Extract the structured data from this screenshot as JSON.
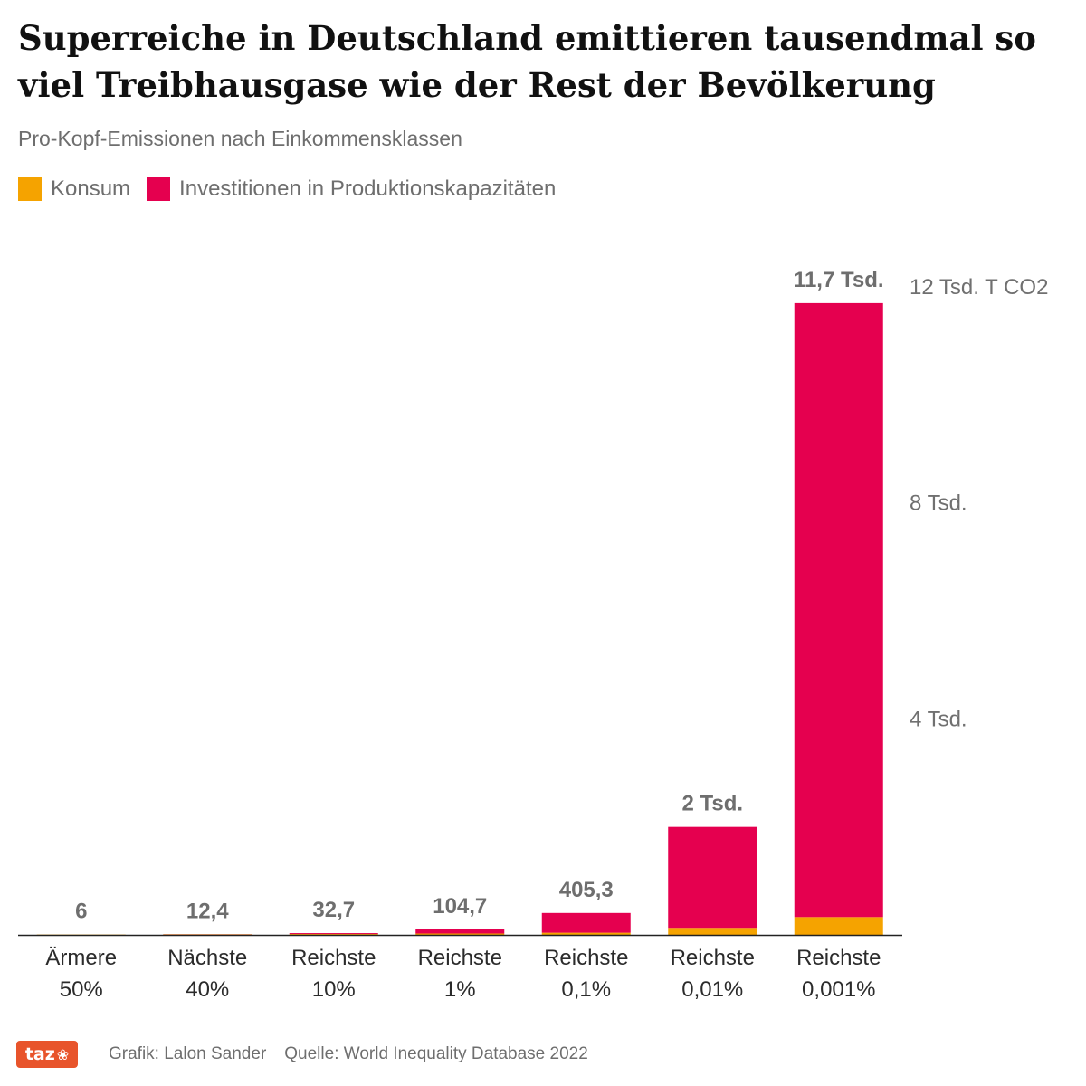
{
  "header": {
    "title": "Superreiche in Deutschland emittieren tausendmal so viel Treibhausgase wie der Rest der Bevölkerung",
    "subtitle": "Pro-Kopf-Emissionen nach Einkommensklassen"
  },
  "colors": {
    "konsum": "#f5a300",
    "investition": "#e5004f",
    "axis_text": "#707070",
    "value_text": "#6e6e6e",
    "category_text": "#2b2b2b",
    "baseline": "#222222",
    "logo_bg": "#e8542b"
  },
  "legend": [
    {
      "label": "Konsum",
      "color_key": "konsum"
    },
    {
      "label": "Investitionen in Produktionskapazitäten",
      "color_key": "investition"
    }
  ],
  "chart_data": {
    "type": "bar",
    "stacked": true,
    "categories": [
      [
        "Ärmere",
        "50%"
      ],
      [
        "Nächste",
        "40%"
      ],
      [
        "Reichste",
        "10%"
      ],
      [
        "Reichste",
        "1%"
      ],
      [
        "Reichste",
        "0,1%"
      ],
      [
        "Reichste",
        "0,01%"
      ],
      [
        "Reichste",
        "0,001%"
      ]
    ],
    "series": [
      {
        "name": "Konsum",
        "values": [
          6,
          10,
          16,
          25,
          40,
          130,
          330
        ]
      },
      {
        "name": "Investitionen in Produktionskapazitäten",
        "values": [
          0,
          2.4,
          16.7,
          79.7,
          365.3,
          1870,
          11370
        ]
      }
    ],
    "totals": [
      6,
      12.4,
      32.7,
      104.7,
      405.3,
      2000,
      11700
    ],
    "total_labels": [
      "6",
      "12,4",
      "32,7",
      "104,7",
      "405,3",
      "2 Tsd.",
      "11,7 Tsd."
    ],
    "y_ticks": [
      {
        "value": 4000,
        "label": "4 Tsd."
      },
      {
        "value": 8000,
        "label": "8 Tsd."
      },
      {
        "value": 12000,
        "label": "12 Tsd. T CO2"
      }
    ],
    "ylim": [
      0,
      12000
    ],
    "y_axis_position": "right",
    "grid": false,
    "legend_position": "top-left"
  },
  "footer": {
    "logo_text": "taz",
    "credit": "Grafik: Lalon Sander",
    "source": "Quelle: World Inequality Database 2022"
  }
}
